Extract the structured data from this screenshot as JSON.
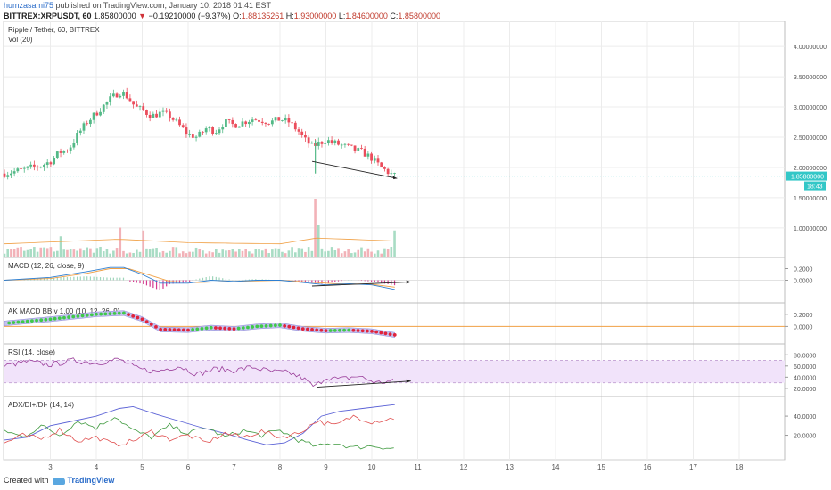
{
  "header": {
    "author": "humzasami75",
    "published_text": "published on TradingView.com, January 10, 2018 01:41 EST",
    "symbol_interval": "BITTREX:XRPUSDT, 60",
    "last_price": "1.85800000",
    "change": "−0.19210000 (−9.37%)",
    "open_label": "O:",
    "open": "1.88135261",
    "high_label": "H:",
    "high": "1.93000000",
    "low_label": "L:",
    "low": "1.84600000",
    "close_label": "C:",
    "close": "1.85800000"
  },
  "footer": {
    "created_with": "Created with",
    "brand": "TradingView"
  },
  "colors": {
    "up": "#53b987",
    "down": "#eb4d5c",
    "macd": "#2f7fd1",
    "signal": "#f0a045",
    "rsi": "#9b3f9b",
    "rsi_band": "#f1e3fa",
    "adx": "#5b62d6",
    "di_plus": "#3f9a3f",
    "di_minus": "#e05050",
    "price_line": "#33c7c7",
    "grid": "#ececec"
  },
  "chart_data": {
    "type": "candlestick",
    "title": "Ripple / Tether, 60, BITTREX",
    "x_axis": {
      "ticks": [
        "3",
        "4",
        "5",
        "6",
        "7",
        "8",
        "9",
        "10",
        "11",
        "12",
        "13",
        "14",
        "15",
        "16",
        "17",
        "18"
      ]
    },
    "price_axis": {
      "ticks": [
        "1.00000000",
        "1.50000000",
        "2.00000000",
        "2.50000000",
        "3.00000000",
        "3.50000000",
        "4.00000000"
      ],
      "ylim": [
        0.6,
        4.4
      ]
    },
    "current_price_label": "1.85800000",
    "countdown_label": "18:43",
    "ohlc_path": [
      [
        2.0,
        1.9
      ],
      [
        2.2,
        1.93
      ],
      [
        2.4,
        1.96
      ],
      [
        2.6,
        2.0
      ],
      [
        2.8,
        2.03
      ],
      [
        3.0,
        2.1
      ],
      [
        3.2,
        2.25
      ],
      [
        3.4,
        2.3
      ],
      [
        3.6,
        2.55
      ],
      [
        3.8,
        2.75
      ],
      [
        4.0,
        2.9
      ],
      [
        4.2,
        3.05
      ],
      [
        4.4,
        3.2
      ],
      [
        4.55,
        3.25
      ],
      [
        4.7,
        3.15
      ],
      [
        4.85,
        3.0
      ],
      [
        5.0,
        2.95
      ],
      [
        5.2,
        2.85
      ],
      [
        5.4,
        2.9
      ],
      [
        5.6,
        2.85
      ],
      [
        5.8,
        2.7
      ],
      [
        6.0,
        2.55
      ],
      [
        6.2,
        2.5
      ],
      [
        6.4,
        2.65
      ],
      [
        6.6,
        2.6
      ],
      [
        6.8,
        2.75
      ],
      [
        7.0,
        2.7
      ],
      [
        7.2,
        2.75
      ],
      [
        7.4,
        2.8
      ],
      [
        7.6,
        2.78
      ],
      [
        7.8,
        2.75
      ],
      [
        8.0,
        2.8
      ],
      [
        8.2,
        2.75
      ],
      [
        8.4,
        2.6
      ],
      [
        8.55,
        2.45
      ],
      [
        8.7,
        2.35
      ],
      [
        8.85,
        2.4
      ],
      [
        9.0,
        2.45
      ],
      [
        9.2,
        2.4
      ],
      [
        9.4,
        2.35
      ],
      [
        9.6,
        2.3
      ],
      [
        9.8,
        2.25
      ],
      [
        10.0,
        2.15
      ],
      [
        10.2,
        2.0
      ],
      [
        10.4,
        1.9
      ],
      [
        10.5,
        1.86
      ]
    ],
    "volume": {
      "label": "Vol (20)",
      "spikes": [
        [
          3.25,
          0.35
        ],
        [
          4.5,
          0.5
        ],
        [
          5.0,
          0.45
        ],
        [
          8.78,
          1.0
        ],
        [
          8.82,
          0.55
        ],
        [
          10.5,
          0.45
        ]
      ]
    },
    "panels": [
      {
        "name": "macd",
        "label": "MACD (12, 26, close, 9)",
        "ticks": [
          "0.2000",
          "0.0000"
        ],
        "ylim": [
          -0.3,
          0.3
        ],
        "macd": [
          [
            2.0,
            0.0
          ],
          [
            3.0,
            0.05
          ],
          [
            3.8,
            0.15
          ],
          [
            4.3,
            0.22
          ],
          [
            4.6,
            0.22
          ],
          [
            5.0,
            0.1
          ],
          [
            5.4,
            -0.05
          ],
          [
            6.0,
            -0.05
          ],
          [
            6.5,
            0.0
          ],
          [
            7.0,
            -0.02
          ],
          [
            7.5,
            0.0
          ],
          [
            8.0,
            0.0
          ],
          [
            8.5,
            -0.04
          ],
          [
            9.0,
            -0.08
          ],
          [
            9.5,
            -0.06
          ],
          [
            10.0,
            -0.08
          ],
          [
            10.5,
            -0.16
          ]
        ],
        "signal": [
          [
            2.0,
            0.0
          ],
          [
            3.0,
            0.03
          ],
          [
            3.8,
            0.12
          ],
          [
            4.3,
            0.2
          ],
          [
            4.7,
            0.2
          ],
          [
            5.2,
            0.08
          ],
          [
            5.6,
            -0.02
          ],
          [
            6.2,
            -0.04
          ],
          [
            7.0,
            -0.02
          ],
          [
            8.0,
            0.0
          ],
          [
            8.6,
            -0.03
          ],
          [
            9.2,
            -0.06
          ],
          [
            10.0,
            -0.07
          ],
          [
            10.5,
            -0.12
          ]
        ],
        "trendline": [
          [
            8.7,
            -0.1
          ],
          [
            10.85,
            -0.03
          ]
        ]
      },
      {
        "name": "akmacd",
        "label": "AK MACD BB v 1.00 (10, 12, 26, 9)",
        "ticks": [
          "0.2000",
          "0.0000"
        ],
        "ylim": [
          -0.2,
          0.3
        ],
        "line": [
          [
            2.0,
            0.05
          ],
          [
            3.0,
            0.12
          ],
          [
            4.0,
            0.2
          ],
          [
            4.6,
            0.22
          ],
          [
            5.0,
            0.12
          ],
          [
            5.4,
            -0.05
          ],
          [
            6.0,
            -0.06
          ],
          [
            6.5,
            -0.02
          ],
          [
            7.0,
            -0.04
          ],
          [
            7.5,
            0.0
          ],
          [
            8.0,
            0.02
          ],
          [
            8.5,
            -0.04
          ],
          [
            9.0,
            -0.07
          ],
          [
            9.5,
            -0.06
          ],
          [
            10.0,
            -0.08
          ],
          [
            10.5,
            -0.14
          ]
        ],
        "orange_level": 0.0
      },
      {
        "name": "rsi",
        "label": "RSI (14, close)",
        "ticks": [
          "80.0000",
          "60.0000",
          "40.0000",
          "20.0000"
        ],
        "ylim": [
          15,
          90
        ],
        "band": [
          30,
          70
        ],
        "rsi": [
          [
            2.0,
            60
          ],
          [
            2.5,
            68
          ],
          [
            3.0,
            62
          ],
          [
            3.5,
            70
          ],
          [
            4.0,
            65
          ],
          [
            4.5,
            72
          ],
          [
            4.9,
            55
          ],
          [
            5.3,
            50
          ],
          [
            5.8,
            60
          ],
          [
            6.2,
            45
          ],
          [
            6.6,
            55
          ],
          [
            7.0,
            52
          ],
          [
            7.4,
            58
          ],
          [
            7.8,
            50
          ],
          [
            8.2,
            48
          ],
          [
            8.5,
            38
          ],
          [
            8.75,
            22
          ],
          [
            9.0,
            40
          ],
          [
            9.3,
            36
          ],
          [
            9.7,
            42
          ],
          [
            10.1,
            30
          ],
          [
            10.5,
            33
          ]
        ],
        "trendline": [
          [
            8.8,
            22
          ],
          [
            10.85,
            33
          ]
        ]
      },
      {
        "name": "adx",
        "label": "ADX/DI+/DI- (14, 14)",
        "ticks": [
          "40.0000",
          "20.0000"
        ],
        "ylim": [
          0,
          55
        ],
        "adx": [
          [
            2.0,
            15
          ],
          [
            2.5,
            18
          ],
          [
            3.0,
            30
          ],
          [
            3.5,
            35
          ],
          [
            4.0,
            40
          ],
          [
            4.5,
            48
          ],
          [
            4.8,
            50
          ],
          [
            5.3,
            42
          ],
          [
            5.8,
            35
          ],
          [
            6.3,
            28
          ],
          [
            6.8,
            22
          ],
          [
            7.3,
            15
          ],
          [
            7.7,
            10
          ],
          [
            8.1,
            12
          ],
          [
            8.5,
            22
          ],
          [
            8.9,
            40
          ],
          [
            9.3,
            45
          ],
          [
            9.8,
            48
          ],
          [
            10.5,
            52
          ]
        ],
        "di_plus": [
          [
            2.0,
            25
          ],
          [
            2.4,
            18
          ],
          [
            2.8,
            30
          ],
          [
            3.2,
            20
          ],
          [
            3.6,
            35
          ],
          [
            4.0,
            28
          ],
          [
            4.4,
            40
          ],
          [
            4.8,
            25
          ],
          [
            5.2,
            18
          ],
          [
            5.6,
            30
          ],
          [
            6.0,
            22
          ],
          [
            6.4,
            28
          ],
          [
            6.8,
            18
          ],
          [
            7.2,
            25
          ],
          [
            7.6,
            20
          ],
          [
            8.0,
            25
          ],
          [
            8.4,
            15
          ],
          [
            8.8,
            8
          ],
          [
            9.2,
            12
          ],
          [
            9.6,
            7
          ],
          [
            10.0,
            9
          ],
          [
            10.5,
            6
          ]
        ],
        "di_minus": [
          [
            2.0,
            12
          ],
          [
            2.4,
            20
          ],
          [
            2.8,
            16
          ],
          [
            3.2,
            26
          ],
          [
            3.6,
            14
          ],
          [
            4.0,
            18
          ],
          [
            4.4,
            10
          ],
          [
            4.8,
            14
          ],
          [
            5.2,
            24
          ],
          [
            5.6,
            16
          ],
          [
            6.0,
            20
          ],
          [
            6.4,
            12
          ],
          [
            6.8,
            22
          ],
          [
            7.2,
            18
          ],
          [
            7.6,
            24
          ],
          [
            8.0,
            18
          ],
          [
            8.4,
            22
          ],
          [
            8.8,
            35
          ],
          [
            9.2,
            30
          ],
          [
            9.6,
            40
          ],
          [
            10.0,
            34
          ],
          [
            10.5,
            38
          ]
        ]
      }
    ]
  }
}
